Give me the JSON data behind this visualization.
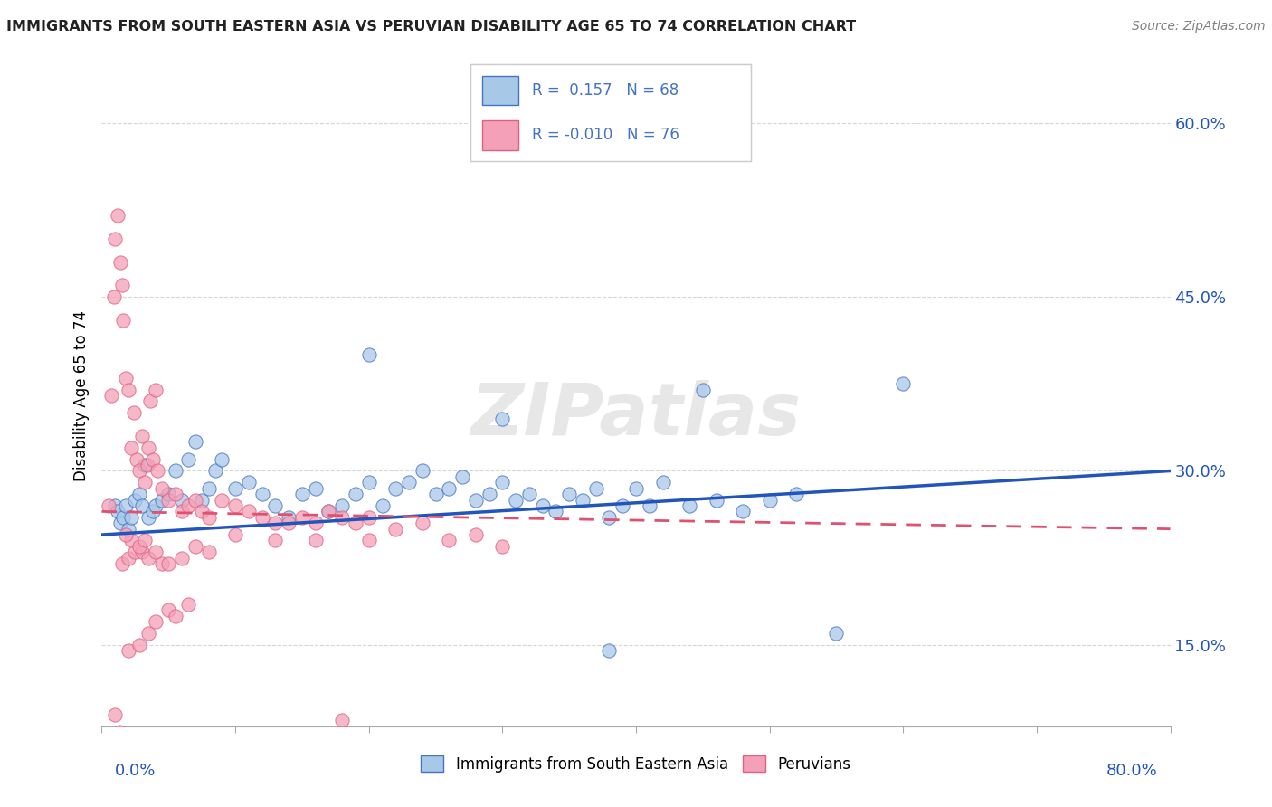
{
  "title": "IMMIGRANTS FROM SOUTH EASTERN ASIA VS PERUVIAN DISABILITY AGE 65 TO 74 CORRELATION CHART",
  "source": "Source: ZipAtlas.com",
  "ylabel": "Disability Age 65 to 74",
  "xlim": [
    0.0,
    80.0
  ],
  "ylim": [
    8.0,
    65.0
  ],
  "yticks": [
    15.0,
    30.0,
    45.0,
    60.0
  ],
  "ytick_labels": [
    "15.0%",
    "30.0%",
    "45.0%",
    "60.0%"
  ],
  "series1_name": "Immigrants from South Eastern Asia",
  "series1_color": "#a8c8e8",
  "series1_edge_color": "#4472c4",
  "series1_line_color": "#2255bb",
  "series1_R": "0.157",
  "series1_N": "68",
  "series2_name": "Peruvians",
  "series2_color": "#f4a0b8",
  "series2_edge_color": "#e06080",
  "series2_line_color": "#e05070",
  "series2_R": "-0.010",
  "series2_N": "76",
  "legend_R_color": "#4472c4",
  "watermark": "ZIPatlas",
  "background_color": "#ffffff",
  "trend1_x0": 0.0,
  "trend1_y0": 24.5,
  "trend1_x1": 80.0,
  "trend1_y1": 30.0,
  "trend2_x0": 0.0,
  "trend2_y0": 26.5,
  "trend2_x1": 80.0,
  "trend2_y1": 25.0,
  "series1_x": [
    1.0,
    1.2,
    1.4,
    1.6,
    1.8,
    2.0,
    2.2,
    2.5,
    2.8,
    3.0,
    3.2,
    3.5,
    3.8,
    4.0,
    4.5,
    5.0,
    5.5,
    6.0,
    6.5,
    7.0,
    7.5,
    8.0,
    8.5,
    9.0,
    10.0,
    11.0,
    12.0,
    13.0,
    14.0,
    15.0,
    16.0,
    17.0,
    18.0,
    19.0,
    20.0,
    21.0,
    22.0,
    23.0,
    24.0,
    25.0,
    26.0,
    27.0,
    28.0,
    29.0,
    30.0,
    31.0,
    32.0,
    33.0,
    34.0,
    35.0,
    36.0,
    37.0,
    38.0,
    39.0,
    40.0,
    41.0,
    42.0,
    44.0,
    46.0,
    48.0,
    50.0,
    52.0,
    30.0,
    55.0,
    60.0,
    38.0,
    45.0,
    20.0
  ],
  "series1_y": [
    27.0,
    26.5,
    25.5,
    26.0,
    27.0,
    25.0,
    26.0,
    27.5,
    28.0,
    27.0,
    30.5,
    26.0,
    26.5,
    27.0,
    27.5,
    28.0,
    30.0,
    27.5,
    31.0,
    32.5,
    27.5,
    28.5,
    30.0,
    31.0,
    28.5,
    29.0,
    28.0,
    27.0,
    26.0,
    28.0,
    28.5,
    26.5,
    27.0,
    28.0,
    29.0,
    27.0,
    28.5,
    29.0,
    30.0,
    28.0,
    28.5,
    29.5,
    27.5,
    28.0,
    29.0,
    27.5,
    28.0,
    27.0,
    26.5,
    28.0,
    27.5,
    28.5,
    26.0,
    27.0,
    28.5,
    27.0,
    29.0,
    27.0,
    27.5,
    26.5,
    27.5,
    28.0,
    34.5,
    16.0,
    37.5,
    14.5,
    37.0,
    40.0
  ],
  "series2_x": [
    0.5,
    0.7,
    0.9,
    1.0,
    1.2,
    1.4,
    1.5,
    1.6,
    1.8,
    2.0,
    2.2,
    2.4,
    2.6,
    2.8,
    3.0,
    3.2,
    3.4,
    3.5,
    3.6,
    3.8,
    4.0,
    4.2,
    4.5,
    5.0,
    5.5,
    6.0,
    6.5,
    7.0,
    7.5,
    8.0,
    9.0,
    10.0,
    11.0,
    12.0,
    13.0,
    14.0,
    15.0,
    16.0,
    17.0,
    18.0,
    19.0,
    20.0,
    22.0,
    24.0,
    26.0,
    28.0,
    30.0,
    1.5,
    2.0,
    2.5,
    3.0,
    3.5,
    4.0,
    2.2,
    1.8,
    2.8,
    3.2,
    4.5,
    5.0,
    6.0,
    7.0,
    8.0,
    10.0,
    13.0,
    16.0,
    18.0,
    20.0,
    1.0,
    1.3,
    2.0,
    2.8,
    3.5,
    4.0,
    5.0,
    5.5,
    6.5
  ],
  "series2_y": [
    27.0,
    36.5,
    45.0,
    50.0,
    52.0,
    48.0,
    46.0,
    43.0,
    38.0,
    37.0,
    32.0,
    35.0,
    31.0,
    30.0,
    33.0,
    29.0,
    30.5,
    32.0,
    36.0,
    31.0,
    37.0,
    30.0,
    28.5,
    27.5,
    28.0,
    26.5,
    27.0,
    27.5,
    26.5,
    26.0,
    27.5,
    27.0,
    26.5,
    26.0,
    25.5,
    25.5,
    26.0,
    25.5,
    26.5,
    26.0,
    25.5,
    26.0,
    25.0,
    25.5,
    24.0,
    24.5,
    23.5,
    22.0,
    22.5,
    23.0,
    23.0,
    22.5,
    23.0,
    24.0,
    24.5,
    23.5,
    24.0,
    22.0,
    22.0,
    22.5,
    23.5,
    23.0,
    24.5,
    24.0,
    24.0,
    8.5,
    24.0,
    9.0,
    7.5,
    14.5,
    15.0,
    16.0,
    17.0,
    18.0,
    17.5,
    18.5
  ]
}
